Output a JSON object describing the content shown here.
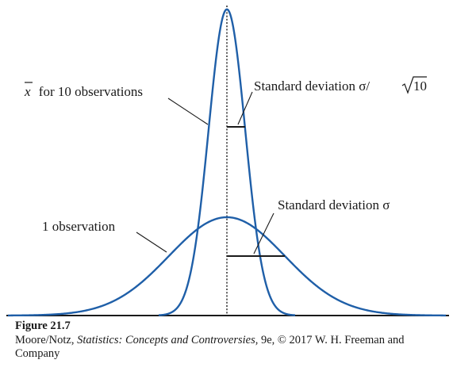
{
  "diagram": {
    "labels": {
      "mean_curve": "for 10 observations",
      "mean_curve_symbol": "x",
      "single_curve": "1 observation",
      "sd_mean": "Standard deviation σ/",
      "sd_mean_radicand": "10",
      "sd_single": "Standard deviation σ"
    },
    "colors": {
      "curve": "#1f5fa8",
      "ink": "#1a1a1a",
      "background": "#ffffff"
    },
    "ratio_of_spreads": 3.1623,
    "curves": [
      {
        "name": "1 observation",
        "relative_sd": 1
      },
      {
        "name": "x̄ for 10 observations",
        "relative_sd": 0.3162
      }
    ]
  },
  "caption": {
    "figure_number": "Figure 21.7",
    "credit_prefix": "Moore/Notz, ",
    "credit_title": "Statistics: Concepts and Controversies",
    "credit_suffix": ", 9e, © 2017 W. H. Freeman and Company"
  }
}
